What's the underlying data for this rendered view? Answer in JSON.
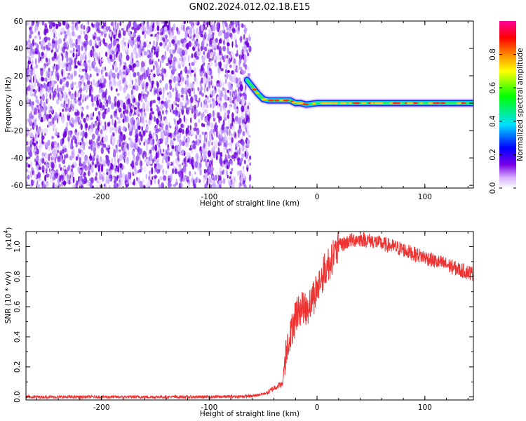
{
  "title": "GN02.2024.012.02.18.E15",
  "chart_data": [
    {
      "type": "heatmap",
      "xlabel": "Height of straight line (km)",
      "ylabel": "Frequency (Hz)",
      "xlim": [
        -270,
        145
      ],
      "ylim": [
        -62,
        60
      ],
      "xticks": [
        -200,
        -100,
        0,
        100
      ],
      "yticks": [
        -60,
        -40,
        -20,
        0,
        20,
        40,
        60
      ],
      "noise_region_x": [
        -270,
        -62
      ],
      "trace": {
        "x": [
          -65,
          -60,
          -55,
          -50,
          -45,
          -40,
          -35,
          -30,
          -25,
          -20,
          -15,
          -10,
          0,
          20,
          40,
          60,
          80,
          100,
          120,
          145
        ],
        "y": [
          17,
          12,
          7,
          3,
          2,
          2,
          2,
          2,
          2,
          0,
          0,
          -1,
          0,
          0,
          0,
          0,
          0,
          0,
          0,
          0
        ]
      },
      "colorbar": {
        "label": "Normalized spectral amplitude",
        "range": [
          0,
          1
        ],
        "ticks": [
          "0.0",
          "0.2",
          "0.4",
          "0.6",
          "0.8"
        ],
        "colors": [
          "#ffffff",
          "#d9b3ff",
          "#7a00e6",
          "#0000ff",
          "#00e0ff",
          "#00ff00",
          "#ffff00",
          "#ff8800",
          "#ff0000",
          "#ff0099"
        ]
      }
    },
    {
      "type": "line",
      "xlabel": "Height of straight line (km)",
      "ylabel": "SNR (10 * v/v)",
      "scale_label": "(x10",
      "scale_exp": "4",
      "scale_close": ")",
      "xlim": [
        -270,
        145
      ],
      "ylim": [
        -0.02,
        1.1
      ],
      "xticks": [
        -200,
        -100,
        0,
        100
      ],
      "yticks": [
        "0.0",
        "0.2",
        "0.4",
        "0.6",
        "0.8",
        "1.0"
      ],
      "series": [
        {
          "color": "#ee3333",
          "x": [
            -270,
            -200,
            -100,
            -60,
            -45,
            -40,
            -35,
            -32,
            -30,
            -28,
            -25,
            -20,
            -15,
            -10,
            -5,
            0,
            10,
            20,
            30,
            40,
            50,
            60,
            70,
            80,
            90,
            100,
            110,
            120,
            130,
            145
          ],
          "y": [
            0.0,
            0.0,
            0.0,
            0.005,
            0.03,
            0.06,
            0.08,
            0.08,
            0.25,
            0.35,
            0.4,
            0.55,
            0.6,
            0.58,
            0.65,
            0.72,
            0.88,
            1.0,
            1.04,
            1.05,
            1.04,
            1.02,
            1.0,
            0.98,
            0.95,
            0.93,
            0.9,
            0.88,
            0.85,
            0.82
          ]
        }
      ]
    }
  ]
}
